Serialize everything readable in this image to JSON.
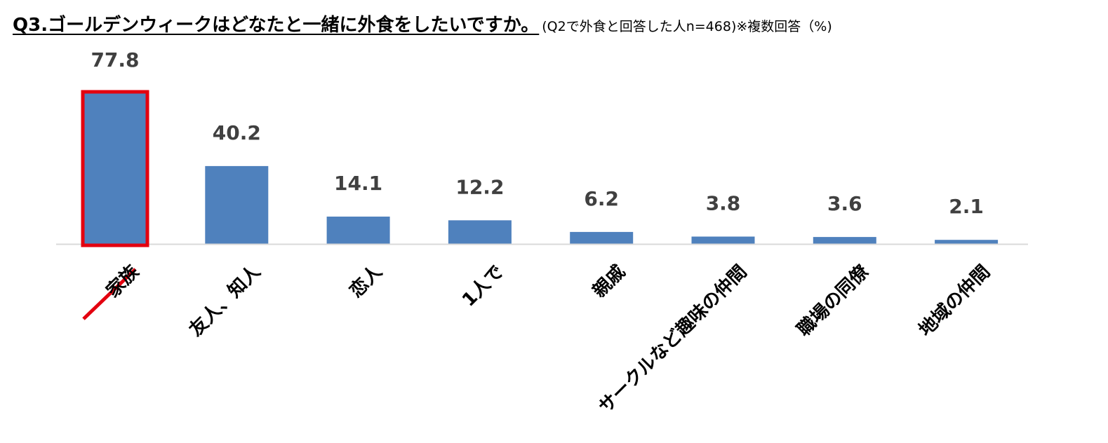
{
  "title": {
    "main": "Q3.ゴールデンウィークはどなたと一緒に外食をしたいですか。",
    "sub": "(Q2で外食と回答した人n=468)※複数回答（%)"
  },
  "chart_data": {
    "type": "bar",
    "categories": [
      "家族",
      "友人、知人",
      "恋人",
      "1人で",
      "親戚",
      "サークルなど趣味の仲間",
      "職場の同僚",
      "地域の仲間"
    ],
    "values": [
      77.8,
      40.2,
      14.1,
      12.2,
      6.2,
      3.8,
      3.6,
      2.1
    ],
    "value_labels": [
      "77.8",
      "40.2",
      "14.1",
      "12.2",
      "6.2",
      "3.8",
      "3.6",
      "2.1"
    ],
    "highlighted_index": 0,
    "ylim": [
      0,
      77.8
    ],
    "grid": false,
    "legend": "none"
  },
  "colors": {
    "bar": "#4f81bd",
    "highlight": "#e3000f",
    "baseline": "#d9d9d9",
    "value_text": "#404040"
  }
}
